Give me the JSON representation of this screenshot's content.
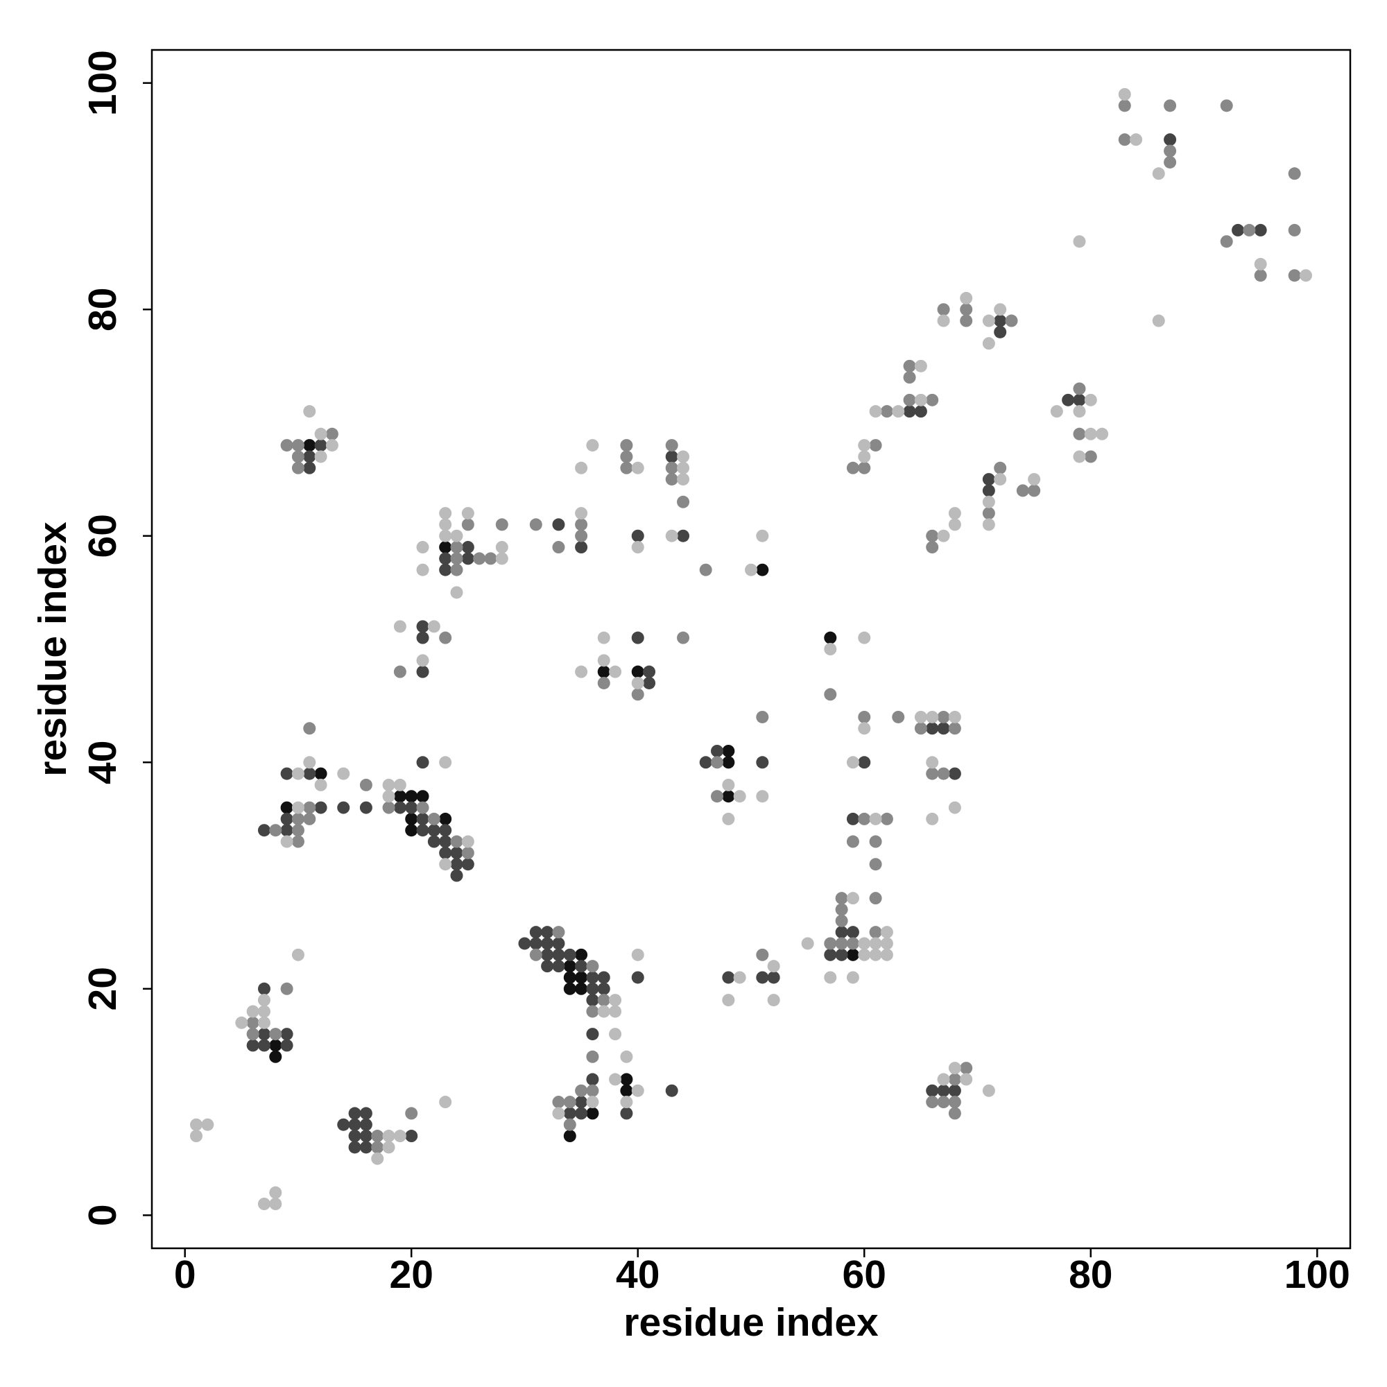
{
  "chart_data": {
    "type": "scatter",
    "xlabel": "residue index",
    "ylabel": "residue index",
    "xlim": [
      -2.92,
      102.92
    ],
    "ylim": [
      -2.92,
      102.92
    ],
    "xticks": [
      0,
      20,
      40,
      60,
      80,
      100
    ],
    "yticks": [
      0,
      20,
      40,
      60,
      80,
      100
    ],
    "series": [
      {
        "color": "#111111",
        "x": [
          8,
          8,
          9,
          12,
          11,
          19,
          20,
          21,
          20,
          20,
          23,
          23,
          51,
          37,
          40,
          35,
          34,
          34,
          35,
          34,
          35,
          36,
          34,
          39,
          39,
          48,
          48,
          48,
          59,
          57
        ],
        "values": [
          15,
          14,
          36,
          39,
          68,
          37,
          37,
          37,
          35,
          34,
          35,
          59,
          57,
          48,
          48,
          23,
          22,
          21,
          21,
          20,
          20,
          9,
          7,
          12,
          11,
          41,
          40,
          37,
          23,
          51
        ]
      },
      {
        "color": "#444444",
        "x": [
          7,
          9,
          6,
          7,
          9,
          7,
          14,
          15,
          15,
          16,
          15,
          16,
          16,
          15,
          16,
          20,
          7,
          9,
          9,
          12,
          9,
          11,
          14,
          16,
          19,
          20,
          21,
          21,
          22,
          22,
          23,
          23,
          23,
          24,
          24,
          25,
          24,
          21,
          12,
          11,
          11,
          21,
          21,
          21,
          25,
          23,
          25,
          23,
          33,
          35,
          43,
          40,
          44,
          40,
          41,
          41,
          30,
          31,
          31,
          32,
          32,
          33,
          32,
          33,
          34,
          32,
          33,
          35,
          36,
          37,
          36,
          37,
          36,
          36,
          40,
          34,
          35,
          35,
          36,
          39,
          43,
          46,
          47,
          51,
          48,
          51,
          52,
          57,
          58,
          58,
          59,
          60,
          59,
          66,
          67,
          68,
          66,
          67,
          68,
          64,
          65,
          72,
          72,
          71,
          71,
          78,
          79,
          87,
          93,
          95
        ],
        "values": [
          16,
          16,
          15,
          15,
          15,
          20,
          8,
          8,
          9,
          9,
          7,
          8,
          7,
          6,
          6,
          7,
          34,
          34,
          35,
          36,
          39,
          39,
          36,
          36,
          36,
          36,
          35,
          34,
          34,
          33,
          33,
          34,
          32,
          32,
          31,
          31,
          30,
          40,
          68,
          67,
          66,
          52,
          51,
          48,
          59,
          58,
          58,
          57,
          61,
          59,
          67,
          60,
          60,
          51,
          48,
          47,
          24,
          24,
          25,
          25,
          24,
          24,
          23,
          23,
          23,
          22,
          22,
          22,
          21,
          21,
          20,
          20,
          19,
          16,
          21,
          9,
          9,
          10,
          12,
          9,
          11,
          40,
          41,
          40,
          21,
          21,
          21,
          23,
          23,
          25,
          25,
          40,
          35,
          43,
          43,
          39,
          11,
          11,
          11,
          71,
          71,
          79,
          78,
          65,
          64,
          72,
          72,
          95,
          87,
          87
        ]
      },
      {
        "color": "#888888",
        "x": [
          6,
          6,
          8,
          9,
          17,
          17,
          20,
          8,
          10,
          10,
          10,
          11,
          11,
          11,
          16,
          18,
          21,
          22,
          24,
          25,
          9,
          10,
          13,
          10,
          10,
          23,
          19,
          25,
          24,
          24,
          26,
          27,
          24,
          28,
          31,
          35,
          35,
          33,
          39,
          39,
          39,
          43,
          43,
          43,
          46,
          44,
          37,
          40,
          33,
          31,
          36,
          37,
          36,
          33,
          34,
          35,
          36,
          34,
          36,
          47,
          47,
          51,
          51,
          57,
          58,
          59,
          58,
          58,
          58,
          61,
          61,
          57,
          60,
          63,
          60,
          62,
          59,
          61,
          67,
          68,
          65,
          66,
          67,
          66,
          67,
          68,
          68,
          69,
          68,
          59,
          60,
          61,
          62,
          64,
          66,
          64,
          64,
          66,
          67,
          69,
          69,
          73,
          72,
          71,
          74,
          75,
          79,
          79,
          80,
          83,
          83,
          87,
          87,
          87,
          92,
          92,
          94,
          95,
          98,
          98,
          98,
          66,
          61,
          44
        ],
        "values": [
          17,
          16,
          16,
          20,
          7,
          6,
          9,
          34,
          33,
          34,
          35,
          35,
          36,
          43,
          38,
          36,
          36,
          35,
          33,
          32,
          68,
          68,
          69,
          67,
          66,
          51,
          48,
          61,
          59,
          58,
          58,
          58,
          57,
          61,
          61,
          61,
          60,
          59,
          68,
          67,
          66,
          68,
          66,
          65,
          57,
          51,
          47,
          46,
          25,
          23,
          22,
          19,
          18,
          10,
          10,
          11,
          11,
          8,
          14,
          40,
          37,
          44,
          23,
          24,
          24,
          24,
          26,
          27,
          28,
          25,
          28,
          46,
          44,
          44,
          35,
          35,
          33,
          33,
          44,
          43,
          43,
          39,
          39,
          10,
          10,
          10,
          12,
          13,
          9,
          66,
          66,
          68,
          71,
          72,
          72,
          74,
          75,
          60,
          80,
          80,
          79,
          79,
          66,
          62,
          64,
          64,
          73,
          69,
          67,
          98,
          95,
          98,
          94,
          93,
          98,
          86,
          87,
          83,
          92,
          87,
          83,
          59,
          31,
          63
        ]
      },
      {
        "color": "#bbbbbb",
        "x": [
          1,
          2,
          1,
          7,
          8,
          8,
          5,
          6,
          7,
          7,
          7,
          10,
          17,
          18,
          18,
          19,
          23,
          9,
          10,
          10,
          11,
          12,
          14,
          18,
          19,
          18,
          25,
          23,
          23,
          13,
          12,
          12,
          11,
          19,
          22,
          21,
          21,
          21,
          23,
          25,
          23,
          23,
          24,
          24,
          28,
          28,
          35,
          35,
          36,
          40,
          40,
          44,
          44,
          44,
          43,
          50,
          51,
          35,
          37,
          37,
          38,
          40,
          38,
          37,
          38,
          38,
          40,
          33,
          36,
          38,
          40,
          39,
          39,
          48,
          49,
          48,
          51,
          49,
          48,
          52,
          52,
          55,
          59,
          57,
          59,
          60,
          61,
          62,
          60,
          61,
          62,
          62,
          57,
          60,
          59,
          60,
          61,
          66,
          68,
          65,
          66,
          66,
          68,
          67,
          68,
          69,
          71,
          60,
          60,
          61,
          63,
          65,
          65,
          67,
          68,
          68,
          67,
          69,
          71,
          72,
          71,
          72,
          71,
          71,
          75,
          77,
          80,
          79,
          80,
          81,
          79,
          79,
          83,
          84,
          86,
          86,
          95,
          99
        ],
        "values": [
          8,
          8,
          7,
          1,
          1,
          2,
          17,
          18,
          19,
          18,
          17,
          23,
          5,
          7,
          6,
          7,
          10,
          33,
          36,
          39,
          40,
          38,
          39,
          38,
          38,
          37,
          33,
          31,
          40,
          68,
          69,
          67,
          71,
          52,
          52,
          49,
          59,
          57,
          62,
          62,
          61,
          60,
          60,
          55,
          59,
          58,
          62,
          66,
          68,
          66,
          59,
          67,
          66,
          65,
          60,
          57,
          60,
          48,
          51,
          49,
          48,
          47,
          19,
          18,
          18,
          16,
          23,
          9,
          10,
          12,
          11,
          10,
          14,
          38,
          37,
          35,
          37,
          21,
          19,
          22,
          19,
          24,
          28,
          21,
          21,
          24,
          24,
          24,
          23,
          23,
          23,
          25,
          50,
          51,
          40,
          43,
          35,
          44,
          44,
          44,
          40,
          35,
          36,
          12,
          13,
          12,
          11,
          67,
          68,
          71,
          71,
          72,
          75,
          60,
          62,
          61,
          79,
          81,
          79,
          80,
          77,
          65,
          63,
          61,
          65,
          71,
          72,
          71,
          69,
          69,
          67,
          86,
          99,
          95,
          92,
          79,
          84,
          83
        ]
      }
    ]
  }
}
